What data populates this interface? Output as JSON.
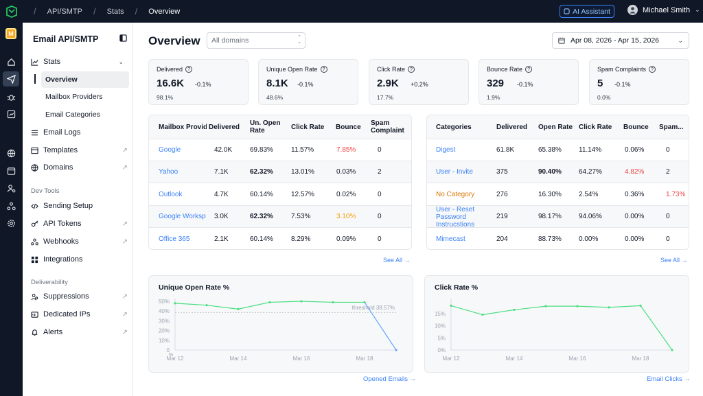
{
  "breadcrumbs": [
    "API/SMTP",
    "Stats",
    "Overview"
  ],
  "ai_assistant_label": "AI Assistant",
  "user_name": "Michael Smith",
  "rail_badge": "M",
  "sidenav": {
    "title": "Email API/SMTP",
    "stats_label": "Stats",
    "stats_children": [
      "Overview",
      "Mailbox Providers",
      "Email Categories"
    ],
    "items_top": [
      "Email Logs",
      "Templates",
      "Domains"
    ],
    "section_dev": "Dev Tools",
    "items_dev": [
      "Sending Setup",
      "API Tokens",
      "Webhooks",
      "Integrations"
    ],
    "section_deliv": "Deliverability",
    "items_deliv": [
      "Suppressions",
      "Dedicated IPs",
      "Alerts"
    ]
  },
  "main": {
    "title": "Overview",
    "domain_placeholder": "All domains",
    "date_range": "Apr 08, 2026 - Apr 15, 2026"
  },
  "stats": [
    {
      "label": "Delivered",
      "value": "16.6K",
      "change": "-0.1%",
      "pct": "98.1%"
    },
    {
      "label": "Unique Open Rate",
      "value": "8.1K",
      "change": "-0.1%",
      "pct": "48.6%"
    },
    {
      "label": "Click Rate",
      "value": "2.9K",
      "change": "+0.2%",
      "pct": "17.7%"
    },
    {
      "label": "Bounce Rate",
      "value": "329",
      "change": "-0.1%",
      "pct": "1.9%"
    },
    {
      "label": "Spam Complaints",
      "value": "5",
      "change": "-0.1%",
      "pct": "0.0%"
    }
  ],
  "mailbox_table": {
    "headers": [
      "Mailbox Provid",
      "Delivered",
      "Un. Open Rate",
      "Click Rate",
      "Bounce",
      "Spam Complaint"
    ],
    "rows": [
      [
        "Google",
        "42.0K",
        "69.83%",
        "11.57%",
        "7.85%",
        "0"
      ],
      [
        "Yahoo",
        "7.1K",
        "62.32%",
        "13.01%",
        "0.03%",
        "2"
      ],
      [
        "Outlook",
        "4.7K",
        "60.14%",
        "12.57%",
        "0.02%",
        "0"
      ],
      [
        "Google Worksp",
        "3.0K",
        "62.32%",
        "7.53%",
        "3.10%",
        "0"
      ],
      [
        "Office 365",
        "2.1K",
        "60.14%",
        "8.29%",
        "0.09%",
        "0"
      ]
    ],
    "see_all": "See All →"
  },
  "category_table": {
    "headers": [
      "Categories",
      "Delivered",
      "Open Rate",
      "Click Rate",
      "Bounce",
      "Spam..."
    ],
    "rows": [
      [
        "Digest",
        "61.8K",
        "65.38%",
        "11.14%",
        "0.06%",
        "0"
      ],
      [
        "User - Invite",
        "375",
        "90.40%",
        "64.27%",
        "4.82%",
        "2"
      ],
      [
        "No Category",
        "276",
        "16.30%",
        "2.54%",
        "0.36%",
        "1.73%"
      ],
      [
        "User - Reset Password Instrucstions",
        "219",
        "98.17%",
        "94.06%",
        "0.00%",
        "0"
      ],
      [
        "Mimecast",
        "204",
        "88.73%",
        "0.00%",
        "0.00%",
        "0"
      ]
    ],
    "see_all": "See All →"
  },
  "colors": {
    "red": "#ef4444",
    "orange": "#f59e0b",
    "link": "#3b82f6",
    "green_line": "#4ade80",
    "blue_line": "#60a5fa"
  },
  "chart_data": [
    {
      "type": "line",
      "title": "Unique Open Rate %",
      "x": [
        "Mar 12",
        "Mar 13",
        "Mar 14",
        "Mar 15",
        "Mar 16",
        "Mar 17",
        "Mar 18",
        "Mar 19"
      ],
      "series": [
        {
          "values": [
            48,
            46,
            42,
            49,
            50,
            49,
            49,
            0
          ]
        }
      ],
      "threshold": {
        "label": "threshold 38.57%",
        "value": 38.57
      },
      "yticks": [
        "50%",
        "40%",
        "30%",
        "20%",
        "10%",
        "0"
      ],
      "xticks": [
        "Mar 12",
        "Mar 14",
        "Mar 16",
        "Mar 18"
      ],
      "ylim": [
        0,
        50
      ],
      "ylabel": "%",
      "footer_link": "Opened Emails →"
    },
    {
      "type": "line",
      "title": "Click Rate %",
      "x": [
        "Mar 12",
        "Mar 13",
        "Mar 14",
        "Mar 15",
        "Mar 16",
        "Mar 17",
        "Mar 18",
        "Mar 19"
      ],
      "series": [
        {
          "values": [
            18.2,
            14.5,
            16.5,
            18,
            18,
            17.5,
            18.2,
            0
          ]
        }
      ],
      "yticks": [
        "15%",
        "10%",
        "5%",
        "0%"
      ],
      "xticks": [
        "Mar 12",
        "Mar 14",
        "Mar 16",
        "Mar 18"
      ],
      "ylim": [
        0,
        20
      ],
      "footer_link": "Email Clicks →"
    }
  ]
}
